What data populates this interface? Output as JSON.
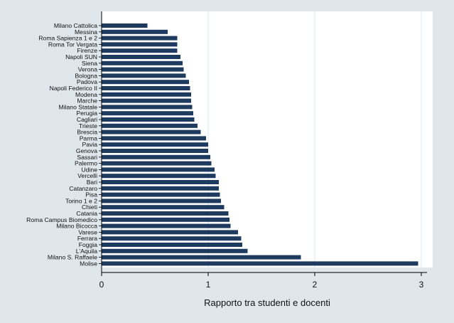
{
  "chart_data": {
    "type": "bar",
    "orientation": "horizontal",
    "categories": [
      "Milano Cattolica",
      "Messina",
      "Roma Sapienza 1 e 2",
      "Roma Tor Vergata",
      "Firenze",
      "Napoli SUN",
      "Siena",
      "Verona",
      "Bologna",
      "Padova",
      "Napoli Federico II",
      "Modena",
      "Marche",
      "Milano Statale",
      "Perugia",
      "Cagliari",
      "Trieste",
      "Brescia",
      "Parma",
      "Pavia",
      "Genova",
      "Sassari",
      "Palermo",
      "Udine",
      "Vercelli",
      "Bari",
      "Catanzaro",
      "Pisa",
      "Torino 1 e 2",
      "Chieti",
      "Catania",
      "Roma Campus Biomedico",
      "Milano Bicocca",
      "Varese",
      "Ferrara",
      "Foggia",
      "L'Aquila",
      "Milano S. Raffaele",
      "Molise"
    ],
    "values": [
      0.43,
      0.62,
      0.71,
      0.71,
      0.71,
      0.74,
      0.76,
      0.77,
      0.79,
      0.82,
      0.83,
      0.84,
      0.84,
      0.85,
      0.86,
      0.87,
      0.9,
      0.93,
      0.98,
      1.0,
      1.0,
      1.02,
      1.03,
      1.06,
      1.07,
      1.1,
      1.1,
      1.11,
      1.12,
      1.15,
      1.19,
      1.2,
      1.21,
      1.28,
      1.31,
      1.32,
      1.37,
      1.87,
      2.97
    ],
    "xlabel": "Rapporto tra studenti e docenti",
    "ylabel": "",
    "xlim": [
      0,
      3
    ],
    "xticks": [
      "0",
      "1",
      "2",
      "3"
    ],
    "grid": "vertical",
    "colors": {
      "bar": "#1e3a5f",
      "background": "#dfe6ec",
      "plot_background": "#ffffff",
      "grid": "#dde7ef",
      "axis": "#000000",
      "text": "#111111"
    }
  }
}
